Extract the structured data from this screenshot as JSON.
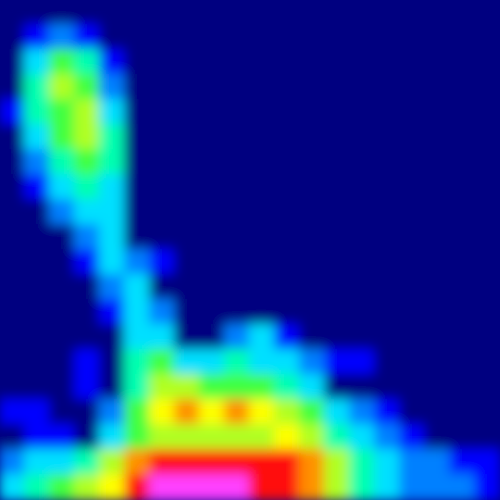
{
  "chart_data": {
    "type": "heatmap",
    "zlim": [
      0,
      10
    ],
    "colormap": [
      "#000080",
      "#0000ff",
      "#0080ff",
      "#00e0ff",
      "#00ffb0",
      "#40ff40",
      "#b0ff20",
      "#ffff00",
      "#ff9000",
      "#ff1010",
      "#ff40ff"
    ],
    "values": [
      [
        0,
        0,
        0,
        0,
        0,
        0,
        0,
        0,
        0,
        0,
        0,
        0,
        0,
        0,
        0,
        0,
        0,
        0,
        0,
        0
      ],
      [
        0,
        1,
        2,
        1,
        0,
        0,
        0,
        0,
        0,
        0,
        0,
        0,
        0,
        0,
        0,
        0,
        0,
        0,
        0,
        0
      ],
      [
        0,
        3,
        5,
        4,
        1,
        0,
        0,
        0,
        0,
        0,
        0,
        0,
        0,
        0,
        0,
        0,
        0,
        0,
        0,
        0
      ],
      [
        0,
        4,
        6,
        5,
        2,
        0,
        0,
        0,
        0,
        0,
        0,
        0,
        0,
        0,
        0,
        0,
        0,
        0,
        0,
        0
      ],
      [
        1,
        4,
        5,
        6,
        3,
        0,
        0,
        0,
        0,
        0,
        0,
        0,
        0,
        0,
        0,
        0,
        0,
        0,
        0,
        0
      ],
      [
        0,
        3,
        5,
        6,
        4,
        0,
        0,
        0,
        0,
        0,
        0,
        0,
        0,
        0,
        0,
        0,
        0,
        0,
        0,
        0
      ],
      [
        0,
        2,
        4,
        5,
        4,
        0,
        0,
        0,
        0,
        0,
        0,
        0,
        0,
        0,
        0,
        0,
        0,
        0,
        0,
        0
      ],
      [
        0,
        1,
        3,
        4,
        3,
        0,
        0,
        0,
        0,
        0,
        0,
        0,
        0,
        0,
        0,
        0,
        0,
        0,
        0,
        0
      ],
      [
        0,
        0,
        2,
        3,
        3,
        0,
        0,
        0,
        0,
        0,
        0,
        0,
        0,
        0,
        0,
        0,
        0,
        0,
        0,
        0
      ],
      [
        0,
        0,
        0,
        2,
        3,
        0,
        0,
        0,
        0,
        0,
        0,
        0,
        0,
        0,
        0,
        0,
        0,
        0,
        0,
        0
      ],
      [
        0,
        0,
        0,
        1,
        3,
        2,
        1,
        0,
        0,
        0,
        0,
        0,
        0,
        0,
        0,
        0,
        0,
        0,
        0,
        0
      ],
      [
        0,
        0,
        0,
        0,
        2,
        3,
        0,
        0,
        0,
        0,
        0,
        0,
        0,
        0,
        0,
        0,
        0,
        0,
        0,
        0
      ],
      [
        0,
        0,
        0,
        0,
        1,
        3,
        2,
        0,
        0,
        0,
        0,
        0,
        0,
        0,
        0,
        0,
        0,
        0,
        0,
        0
      ],
      [
        0,
        0,
        0,
        0,
        0,
        3,
        3,
        0,
        0,
        2,
        3,
        1,
        0,
        0,
        0,
        0,
        0,
        0,
        0,
        0
      ],
      [
        0,
        0,
        0,
        1,
        0,
        4,
        5,
        3,
        3,
        4,
        3,
        3,
        2,
        1,
        1,
        0,
        0,
        0,
        0,
        0
      ],
      [
        0,
        0,
        0,
        1,
        0,
        4,
        6,
        6,
        5,
        5,
        5,
        4,
        3,
        0,
        0,
        0,
        0,
        0,
        0,
        0
      ],
      [
        1,
        1,
        0,
        0,
        2,
        5,
        7,
        8,
        7,
        8,
        7,
        6,
        5,
        3,
        2,
        1,
        0,
        0,
        0,
        0
      ],
      [
        0,
        1,
        1,
        0,
        3,
        5,
        6,
        6,
        6,
        6,
        6,
        7,
        6,
        4,
        3,
        2,
        1,
        0,
        0,
        0
      ],
      [
        2,
        3,
        3,
        4,
        6,
        8,
        9,
        9,
        9,
        9,
        9,
        9,
        8,
        6,
        4,
        3,
        2,
        2,
        1,
        1
      ],
      [
        3,
        4,
        5,
        6,
        7,
        9,
        10,
        10,
        10,
        10,
        9,
        9,
        8,
        6,
        4,
        3,
        2,
        2,
        2,
        1
      ]
    ]
  }
}
